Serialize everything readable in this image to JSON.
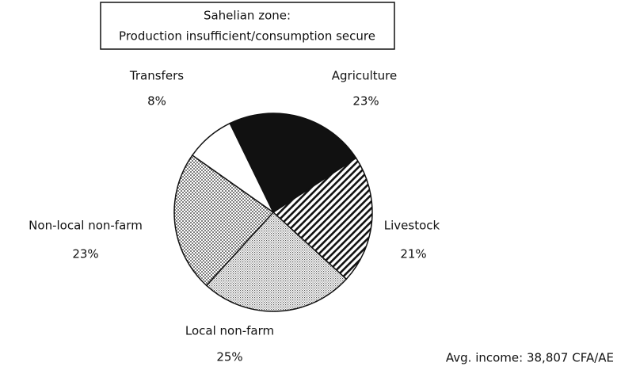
{
  "chart_data": {
    "type": "pie",
    "title": [
      "Sahelian zone:",
      "Production insufficient/consumption secure"
    ],
    "categories": [
      "Agriculture",
      "Livestock",
      "Local non-farm",
      "Non-local non-farm",
      "Transfers"
    ],
    "values": [
      23,
      21,
      25,
      23,
      8
    ],
    "value_labels": [
      "23%",
      "21%",
      "25%",
      "23%",
      "8%"
    ],
    "annotation": "Avg. income: 38,807 CFA/AE"
  }
}
